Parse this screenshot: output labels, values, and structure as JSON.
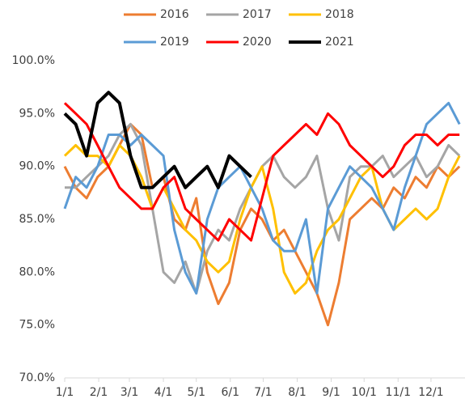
{
  "chart_data": {
    "type": "line",
    "x": [
      1,
      11,
      21,
      31,
      41,
      51,
      61,
      71,
      81,
      91,
      101,
      111,
      121,
      131,
      141,
      151,
      161,
      171,
      181,
      191,
      201,
      211,
      221,
      231,
      241,
      251,
      261,
      271,
      281,
      291,
      301,
      311,
      321,
      331,
      341,
      351,
      361
    ],
    "xlim": [
      1,
      366
    ],
    "xticks": [
      {
        "value": 1,
        "label": "1/1"
      },
      {
        "value": 32,
        "label": "2/1"
      },
      {
        "value": 60,
        "label": "3/1"
      },
      {
        "value": 91,
        "label": "4/1"
      },
      {
        "value": 121,
        "label": "5/1"
      },
      {
        "value": 152,
        "label": "6/1"
      },
      {
        "value": 182,
        "label": "7/1"
      },
      {
        "value": 213,
        "label": "8/1"
      },
      {
        "value": 244,
        "label": "9/1"
      },
      {
        "value": 274,
        "label": "10/1"
      },
      {
        "value": 305,
        "label": "11/1"
      },
      {
        "value": 335,
        "label": "12/1"
      }
    ],
    "ylim": [
      70,
      100
    ],
    "yticks": [
      {
        "value": 70,
        "label": "70.0%"
      },
      {
        "value": 75,
        "label": "75.0%"
      },
      {
        "value": 80,
        "label": "80.0%"
      },
      {
        "value": 85,
        "label": "85.0%"
      },
      {
        "value": 90,
        "label": "90.0%"
      },
      {
        "value": 95,
        "label": "95.0%"
      },
      {
        "value": 100,
        "label": "100.0%"
      }
    ],
    "series": [
      {
        "name": "2016",
        "color": "#ED7D31",
        "values": [
          90,
          88,
          87,
          89,
          90,
          92,
          94,
          93,
          88,
          89,
          85,
          84,
          87,
          80,
          77,
          79,
          84,
          86,
          85,
          83,
          84,
          82,
          80,
          78,
          75,
          79,
          85,
          86,
          87,
          86,
          88,
          87,
          89,
          88,
          90,
          89,
          90
        ]
      },
      {
        "name": "2017",
        "color": "#A5A5A5",
        "values": [
          88,
          88,
          89,
          90,
          91,
          93,
          94,
          92,
          86,
          80,
          79,
          81,
          78,
          82,
          84,
          83,
          86,
          88,
          90,
          91,
          89,
          88,
          89,
          91,
          86,
          83,
          89,
          90,
          90,
          91,
          89,
          90,
          91,
          89,
          90,
          92,
          91
        ]
      },
      {
        "name": "2018",
        "color": "#FFC000",
        "values": [
          91,
          92,
          91,
          91,
          90,
          92,
          91,
          89,
          86,
          88,
          86,
          84,
          83,
          81,
          80,
          81,
          85,
          88,
          90,
          86,
          80,
          78,
          79,
          82,
          84,
          85,
          87,
          89,
          90,
          86,
          84,
          85,
          86,
          85,
          86,
          89,
          91
        ]
      },
      {
        "name": "2019",
        "color": "#5B9BD5",
        "values": [
          86,
          89,
          88,
          90,
          93,
          93,
          92,
          93,
          92,
          91,
          84,
          80,
          78,
          85,
          88,
          89,
          90,
          88,
          86,
          83,
          82,
          82,
          85,
          78,
          86,
          88,
          90,
          89,
          88,
          86,
          84,
          88,
          91,
          94,
          95,
          96,
          94
        ]
      },
      {
        "name": "2020",
        "color": "#FF0000",
        "values": [
          96,
          95,
          94,
          92,
          90,
          88,
          87,
          86,
          86,
          88,
          89,
          86,
          85,
          84,
          83,
          85,
          84,
          83,
          87,
          91,
          92,
          93,
          94,
          93,
          95,
          94,
          92,
          91,
          90,
          89,
          90,
          92,
          93,
          93,
          92,
          93,
          93
        ]
      },
      {
        "name": "2021",
        "color": "#000000",
        "values": [
          95,
          94,
          91,
          96,
          97,
          96,
          91,
          88,
          88,
          89,
          90,
          88,
          89,
          90,
          88,
          91,
          90,
          89,
          null,
          null,
          null,
          null,
          null,
          null,
          null,
          null,
          null,
          null,
          null,
          null,
          null,
          null,
          null,
          null,
          null,
          null,
          null
        ]
      }
    ]
  }
}
